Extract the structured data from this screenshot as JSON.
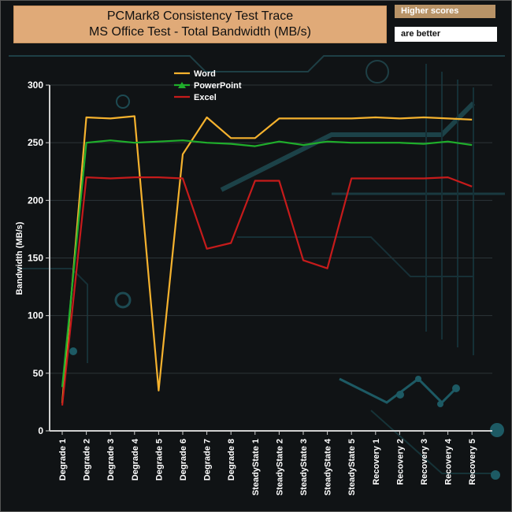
{
  "title_box": {
    "line1": "PCMark8 Consistency Test Trace",
    "line2": "MS Office Test - Total Bandwidth (MB/s)"
  },
  "badge": {
    "top": "Higher scores",
    "bottom": "are better"
  },
  "colors": {
    "background": "#101315",
    "title_bg": "#e0aa78",
    "badge_top_bg": "#b89367",
    "axis": "#d0d0d0",
    "word": "#f5b22e",
    "powerpoint": "#1fae2b",
    "excel": "#c61b1b"
  },
  "chart_data": {
    "type": "line",
    "title": "",
    "xlabel": "",
    "ylabel": "Bandwidth (MB/s)",
    "ylim": [
      0,
      300
    ],
    "yticks": [
      0,
      50,
      100,
      150,
      200,
      250,
      300
    ],
    "grid": true,
    "legend_position": "top-left",
    "categories": [
      "Degrade 1",
      "Degrade 2",
      "Degrade 3",
      "Degrade 4",
      "Degrade 5",
      "Degrade 6",
      "Degrade 7",
      "Degrade 8",
      "SteadyState 1",
      "SteadyState 2",
      "SteadyState 3",
      "SteadyState 4",
      "SteadyState 5",
      "Recovery 1",
      "Recovery 2",
      "Recovery 3",
      "Recovery 4",
      "Recovery 5"
    ],
    "series": [
      {
        "name": "Word",
        "color": "#f5b22e",
        "marker": "line",
        "values": [
          24,
          272,
          271,
          273,
          35,
          240,
          272,
          254,
          254,
          271,
          271,
          271,
          271,
          272,
          271,
          272,
          271,
          270
        ]
      },
      {
        "name": "PowerPoint",
        "color": "#1fae2b",
        "marker": "triangle",
        "values": [
          38,
          250,
          252,
          250,
          251,
          252,
          250,
          249,
          247,
          251,
          248,
          251,
          250,
          250,
          250,
          249,
          251,
          248
        ]
      },
      {
        "name": "Excel",
        "color": "#c61b1b",
        "marker": "line",
        "values": [
          22,
          220,
          219,
          220,
          220,
          219,
          158,
          163,
          217,
          217,
          148,
          141,
          219,
          219,
          219,
          219,
          220,
          212
        ]
      }
    ]
  }
}
